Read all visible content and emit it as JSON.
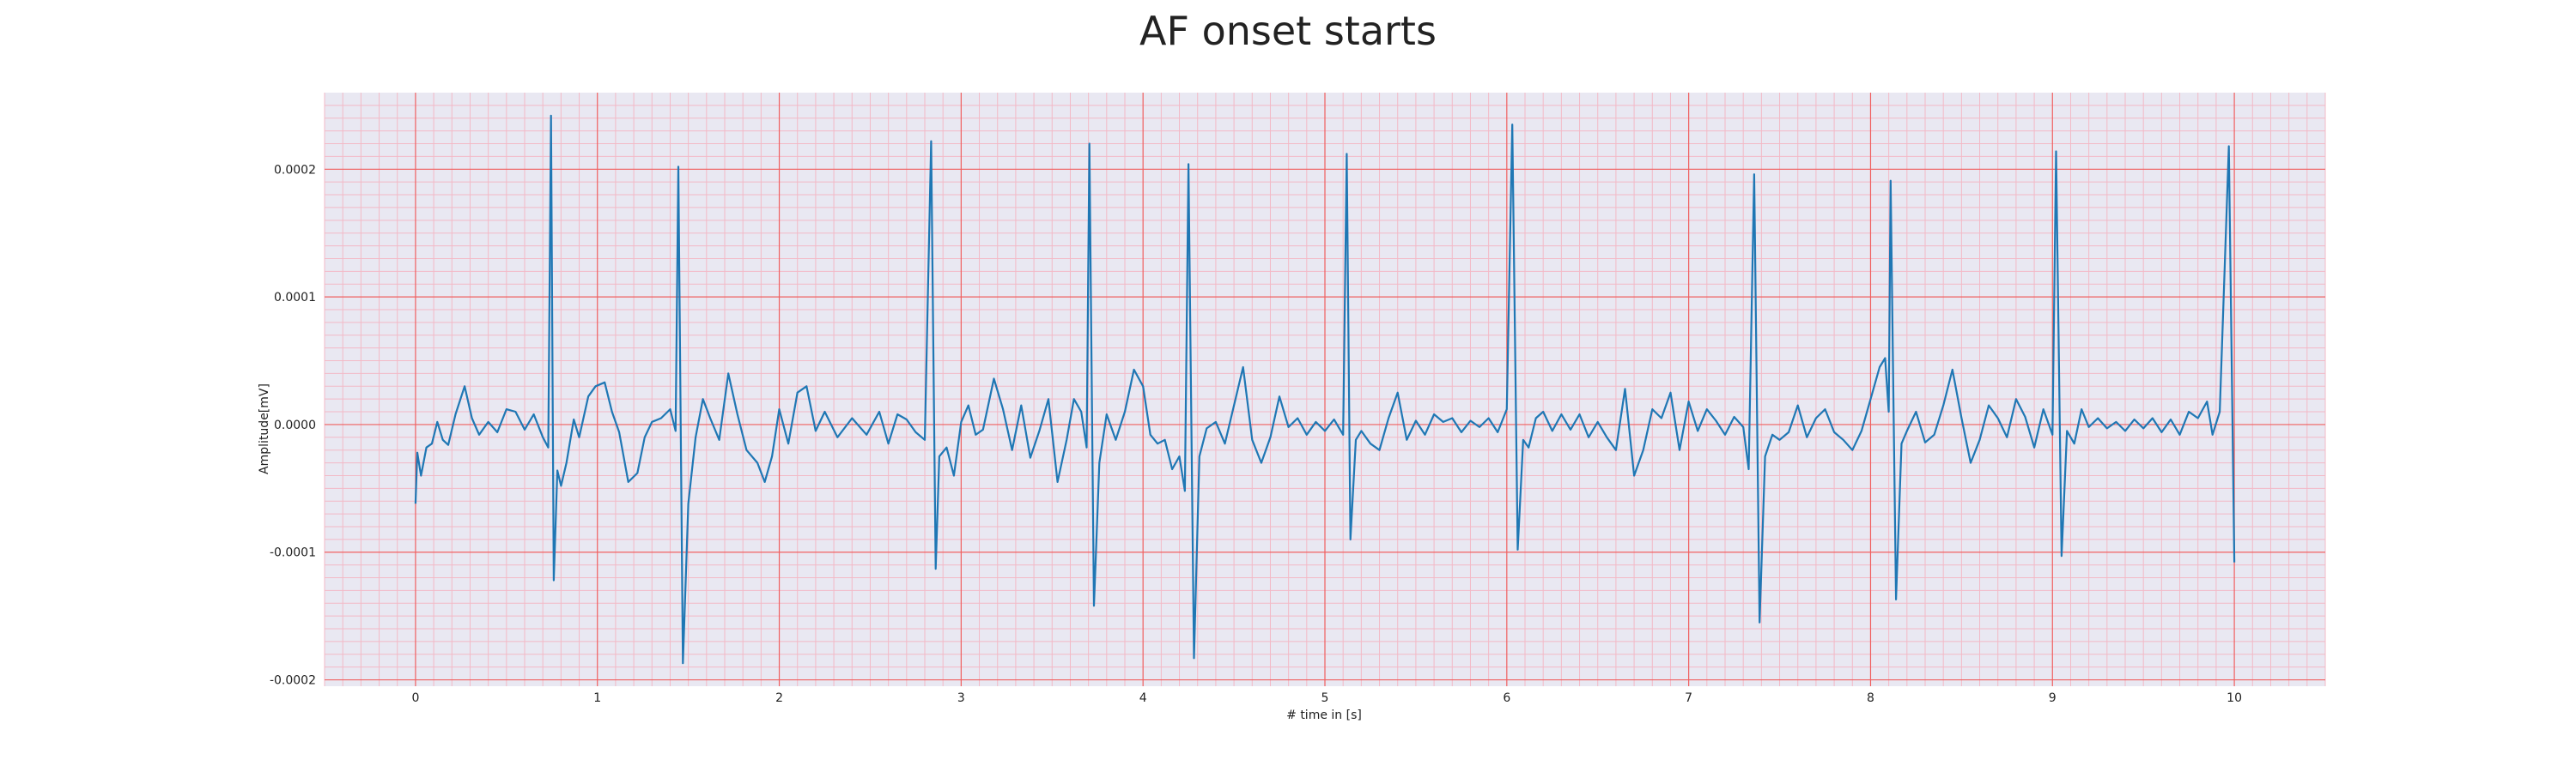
{
  "chart_data": {
    "type": "line",
    "title": "AF onset starts",
    "xlabel": "# time in [s]",
    "ylabel": "Amplitude[mV]",
    "xlim": [
      -0.5,
      10.5
    ],
    "ylim": [
      -0.000205,
      0.00026
    ],
    "xticks": [
      0,
      1,
      2,
      3,
      4,
      5,
      6,
      7,
      8,
      9,
      10
    ],
    "xtick_labels": [
      "0",
      "1",
      "2",
      "3",
      "4",
      "5",
      "6",
      "7",
      "8",
      "9",
      "10"
    ],
    "yticks": [
      -0.0002,
      -0.0001,
      0.0,
      0.0001,
      0.0002
    ],
    "ytick_labels": [
      "-0.0002",
      "-0.0001",
      "0.0000",
      "0.0001",
      "0.0002"
    ],
    "grid": "on (red major grid, light pink minor grid)",
    "background": "#e9e8f2",
    "colors": {
      "line": "#1f77b4",
      "major_grid": "#f06060",
      "minor_grid": "#f3b9c6"
    },
    "series": [
      {
        "points": [
          [
            0,
            -6.2e-05
          ],
          [
            0.01,
            -2.2e-05
          ],
          [
            0.03,
            -4e-05
          ],
          [
            0.06,
            -1.8e-05
          ],
          [
            0.09,
            -1.5e-05
          ],
          [
            0.12,
            2e-06
          ],
          [
            0.15,
            -1.2e-05
          ],
          [
            0.18,
            -1.6e-05
          ],
          [
            0.22,
            8e-06
          ],
          [
            0.27,
            3e-05
          ],
          [
            0.31,
            5e-06
          ],
          [
            0.35,
            -8e-06
          ],
          [
            0.4,
            2e-06
          ],
          [
            0.45,
            -6e-06
          ],
          [
            0.5,
            1.2e-05
          ],
          [
            0.55,
            1e-05
          ],
          [
            0.6,
            -4e-06
          ],
          [
            0.65,
            8e-06
          ],
          [
            0.7,
            -1e-05
          ],
          [
            0.73,
            -1.8e-05
          ],
          [
            0.745,
            0.000242
          ],
          [
            0.76,
            -0.000122
          ],
          [
            0.78,
            -3.6e-05
          ],
          [
            0.8,
            -4.8e-05
          ],
          [
            0.83,
            -3e-05
          ],
          [
            0.87,
            4e-06
          ],
          [
            0.9,
            -1e-05
          ],
          [
            0.95,
            2.2e-05
          ],
          [
            0.99,
            3e-05
          ],
          [
            1.04,
            3.3e-05
          ],
          [
            1.08,
            1e-05
          ],
          [
            1.12,
            -6e-06
          ],
          [
            1.17,
            -4.5e-05
          ],
          [
            1.22,
            -3.8e-05
          ],
          [
            1.26,
            -1e-05
          ],
          [
            1.3,
            2e-06
          ],
          [
            1.35,
            5e-06
          ],
          [
            1.4,
            1.2e-05
          ],
          [
            1.43,
            -5e-06
          ],
          [
            1.445,
            0.000202
          ],
          [
            1.47,
            -0.000187
          ],
          [
            1.5,
            -6.2e-05
          ],
          [
            1.54,
            -1e-05
          ],
          [
            1.58,
            2e-05
          ],
          [
            1.62,
            5e-06
          ],
          [
            1.67,
            -1.2e-05
          ],
          [
            1.72,
            4e-05
          ],
          [
            1.77,
            8e-06
          ],
          [
            1.82,
            -2e-05
          ],
          [
            1.88,
            -3e-05
          ],
          [
            1.92,
            -4.5e-05
          ],
          [
            1.96,
            -2.5e-05
          ],
          [
            2.0,
            1.2e-05
          ],
          [
            2.05,
            -1.5e-05
          ],
          [
            2.1,
            2.5e-05
          ],
          [
            2.15,
            3e-05
          ],
          [
            2.2,
            -5e-06
          ],
          [
            2.25,
            1e-05
          ],
          [
            2.32,
            -1e-05
          ],
          [
            2.4,
            5e-06
          ],
          [
            2.48,
            -8e-06
          ],
          [
            2.55,
            1e-05
          ],
          [
            2.6,
            -1.5e-05
          ],
          [
            2.65,
            8e-06
          ],
          [
            2.7,
            4e-06
          ],
          [
            2.75,
            -6e-06
          ],
          [
            2.8,
            -1.2e-05
          ],
          [
            2.835,
            0.000222
          ],
          [
            2.86,
            -0.000113
          ],
          [
            2.88,
            -2.5e-05
          ],
          [
            2.92,
            -1.8e-05
          ],
          [
            2.96,
            -4e-05
          ],
          [
            3.0,
            2e-06
          ],
          [
            3.04,
            1.5e-05
          ],
          [
            3.08,
            -8e-06
          ],
          [
            3.12,
            -4e-06
          ],
          [
            3.18,
            3.6e-05
          ],
          [
            3.23,
            1.2e-05
          ],
          [
            3.28,
            -2e-05
          ],
          [
            3.33,
            1.5e-05
          ],
          [
            3.38,
            -2.6e-05
          ],
          [
            3.43,
            -5e-06
          ],
          [
            3.48,
            2e-05
          ],
          [
            3.53,
            -4.5e-05
          ],
          [
            3.58,
            -1.2e-05
          ],
          [
            3.62,
            2e-05
          ],
          [
            3.66,
            1e-05
          ],
          [
            3.69,
            -1.8e-05
          ],
          [
            3.705,
            0.00022
          ],
          [
            3.73,
            -0.000142
          ],
          [
            3.76,
            -3e-05
          ],
          [
            3.8,
            8e-06
          ],
          [
            3.85,
            -1.2e-05
          ],
          [
            3.9,
            1e-05
          ],
          [
            3.95,
            4.3e-05
          ],
          [
            4.0,
            3e-05
          ],
          [
            4.04,
            -8e-06
          ],
          [
            4.08,
            -1.5e-05
          ],
          [
            4.12,
            -1.2e-05
          ],
          [
            4.16,
            -3.5e-05
          ],
          [
            4.2,
            -2.5e-05
          ],
          [
            4.23,
            -5.2e-05
          ],
          [
            4.25,
            0.000204
          ],
          [
            4.28,
            -0.000183
          ],
          [
            4.31,
            -2.5e-05
          ],
          [
            4.35,
            -3e-06
          ],
          [
            4.4,
            2e-06
          ],
          [
            4.45,
            -1.5e-05
          ],
          [
            4.5,
            1.5e-05
          ],
          [
            4.55,
            4.5e-05
          ],
          [
            4.6,
            -1.2e-05
          ],
          [
            4.65,
            -3e-05
          ],
          [
            4.7,
            -1e-05
          ],
          [
            4.75,
            2.2e-05
          ],
          [
            4.8,
            -2e-06
          ],
          [
            4.85,
            5e-06
          ],
          [
            4.9,
            -8e-06
          ],
          [
            4.95,
            2e-06
          ],
          [
            5.0,
            -5e-06
          ],
          [
            5.05,
            4e-06
          ],
          [
            5.1,
            -8e-06
          ],
          [
            5.12,
            0.000212
          ],
          [
            5.14,
            -9e-05
          ],
          [
            5.17,
            -1.2e-05
          ],
          [
            5.2,
            -5e-06
          ],
          [
            5.25,
            -1.5e-05
          ],
          [
            5.3,
            -2e-05
          ],
          [
            5.35,
            5e-06
          ],
          [
            5.4,
            2.5e-05
          ],
          [
            5.45,
            -1.2e-05
          ],
          [
            5.5,
            3e-06
          ],
          [
            5.55,
            -8e-06
          ],
          [
            5.6,
            8e-06
          ],
          [
            5.65,
            2e-06
          ],
          [
            5.7,
            5e-06
          ],
          [
            5.75,
            -6e-06
          ],
          [
            5.8,
            3e-06
          ],
          [
            5.85,
            -2e-06
          ],
          [
            5.9,
            5e-06
          ],
          [
            5.95,
            -6e-06
          ],
          [
            6.0,
            1.2e-05
          ],
          [
            6.03,
            0.000235
          ],
          [
            6.06,
            -9.8e-05
          ],
          [
            6.09,
            -1.2e-05
          ],
          [
            6.12,
            -1.8e-05
          ],
          [
            6.16,
            5e-06
          ],
          [
            6.2,
            1e-05
          ],
          [
            6.25,
            -5e-06
          ],
          [
            6.3,
            8e-06
          ],
          [
            6.35,
            -4e-06
          ],
          [
            6.4,
            8e-06
          ],
          [
            6.45,
            -1e-05
          ],
          [
            6.5,
            2e-06
          ],
          [
            6.55,
            -1e-05
          ],
          [
            6.6,
            -2e-05
          ],
          [
            6.65,
            2.8e-05
          ],
          [
            6.7,
            -4e-05
          ],
          [
            6.75,
            -2e-05
          ],
          [
            6.8,
            1.2e-05
          ],
          [
            6.85,
            5e-06
          ],
          [
            6.9,
            2.5e-05
          ],
          [
            6.95,
            -2e-05
          ],
          [
            7.0,
            1.8e-05
          ],
          [
            7.05,
            -5e-06
          ],
          [
            7.1,
            1.2e-05
          ],
          [
            7.15,
            3e-06
          ],
          [
            7.2,
            -8e-06
          ],
          [
            7.25,
            6e-06
          ],
          [
            7.3,
            -2e-06
          ],
          [
            7.33,
            -3.5e-05
          ],
          [
            7.36,
            0.000196
          ],
          [
            7.39,
            -0.000155
          ],
          [
            7.42,
            -2.5e-05
          ],
          [
            7.46,
            -8e-06
          ],
          [
            7.5,
            -1.2e-05
          ],
          [
            7.55,
            -6e-06
          ],
          [
            7.6,
            1.5e-05
          ],
          [
            7.65,
            -1e-05
          ],
          [
            7.7,
            5e-06
          ],
          [
            7.75,
            1.2e-05
          ],
          [
            7.8,
            -6e-06
          ],
          [
            7.85,
            -1.2e-05
          ],
          [
            7.9,
            -2e-05
          ],
          [
            7.95,
            -5e-06
          ],
          [
            8.0,
            2e-05
          ],
          [
            8.05,
            4.5e-05
          ],
          [
            8.08,
            5.2e-05
          ],
          [
            8.1,
            1e-05
          ],
          [
            8.11,
            0.000191
          ],
          [
            8.14,
            -0.000137
          ],
          [
            8.17,
            -1.5e-05
          ],
          [
            8.2,
            -5e-06
          ],
          [
            8.25,
            1e-05
          ],
          [
            8.3,
            -1.4e-05
          ],
          [
            8.35,
            -8e-06
          ],
          [
            8.4,
            1.5e-05
          ],
          [
            8.45,
            4.3e-05
          ],
          [
            8.5,
            5e-06
          ],
          [
            8.55,
            -3e-05
          ],
          [
            8.6,
            -1.2e-05
          ],
          [
            8.65,
            1.5e-05
          ],
          [
            8.7,
            5e-06
          ],
          [
            8.75,
            -1e-05
          ],
          [
            8.8,
            2e-05
          ],
          [
            8.85,
            6e-06
          ],
          [
            8.9,
            -1.8e-05
          ],
          [
            8.95,
            1.2e-05
          ],
          [
            9.0,
            -8e-06
          ],
          [
            9.02,
            0.000214
          ],
          [
            9.05,
            -0.000103
          ],
          [
            9.08,
            -5e-06
          ],
          [
            9.12,
            -1.5e-05
          ],
          [
            9.16,
            1.2e-05
          ],
          [
            9.2,
            -2e-06
          ],
          [
            9.25,
            5e-06
          ],
          [
            9.3,
            -3e-06
          ],
          [
            9.35,
            2e-06
          ],
          [
            9.4,
            -5e-06
          ],
          [
            9.45,
            4e-06
          ],
          [
            9.5,
            -3e-06
          ],
          [
            9.55,
            5e-06
          ],
          [
            9.6,
            -6e-06
          ],
          [
            9.65,
            4e-06
          ],
          [
            9.7,
            -8e-06
          ],
          [
            9.75,
            1e-05
          ],
          [
            9.8,
            5e-06
          ],
          [
            9.85,
            1.8e-05
          ],
          [
            9.88,
            -8e-06
          ],
          [
            9.92,
            1e-05
          ],
          [
            9.97,
            0.000218
          ],
          [
            10.0,
            -0.000108
          ]
        ]
      }
    ]
  }
}
